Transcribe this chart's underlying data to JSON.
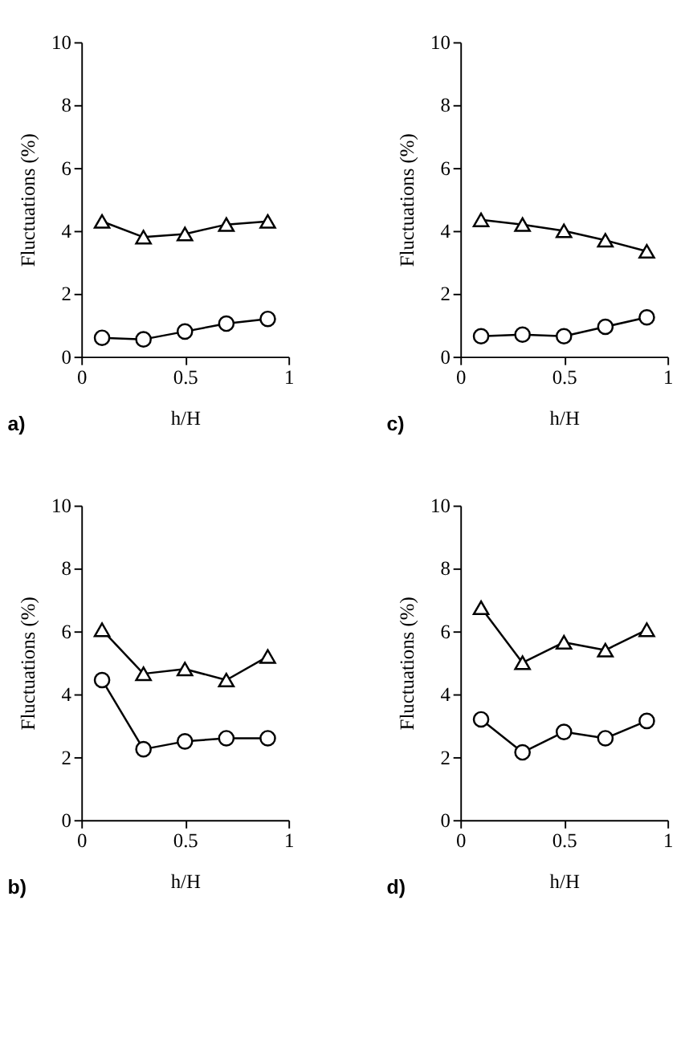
{
  "chart_data": [
    {
      "type": "line",
      "xlabel": "h/H",
      "ylabel": "Fluctuations (%)",
      "annotations": [
        "a)"
      ],
      "x": [
        0.1,
        0.3,
        0.5,
        0.7,
        0.9
      ],
      "xlim": [
        0,
        1
      ],
      "xticks": [
        0,
        0.5,
        1
      ],
      "ylim": [
        0,
        10
      ],
      "yticks": [
        0,
        2,
        4,
        6,
        8,
        10
      ],
      "grid": false,
      "legend": false,
      "series": [
        {
          "color": "#000000",
          "marker": "triangle",
          "values": [
            4.3,
            3.8,
            3.9,
            4.2,
            4.3
          ]
        },
        {
          "color": "#000000",
          "marker": "circle",
          "values": [
            0.6,
            0.55,
            0.8,
            1.05,
            1.2
          ]
        }
      ]
    },
    {
      "type": "line",
      "xlabel": "h/H",
      "ylabel": "Fluctuations (%)",
      "annotations": [
        "c)"
      ],
      "x": [
        0.1,
        0.3,
        0.5,
        0.7,
        0.9
      ],
      "xlim": [
        0,
        1
      ],
      "xticks": [
        0,
        0.5,
        1
      ],
      "ylim": [
        0,
        10
      ],
      "yticks": [
        0,
        2,
        4,
        6,
        8,
        10
      ],
      "grid": false,
      "legend": false,
      "series": [
        {
          "color": "#000000",
          "marker": "triangle",
          "values": [
            4.35,
            4.2,
            4.0,
            3.7,
            3.35
          ]
        },
        {
          "color": "#000000",
          "marker": "circle",
          "values": [
            0.65,
            0.7,
            0.65,
            0.95,
            1.25
          ]
        }
      ]
    },
    {
      "type": "line",
      "xlabel": "h/H",
      "ylabel": "Fluctuations (%)",
      "annotations": [
        "b)"
      ],
      "x": [
        0.1,
        0.3,
        0.5,
        0.7,
        0.9
      ],
      "xlim": [
        0,
        1
      ],
      "xticks": [
        0,
        0.5,
        1
      ],
      "ylim": [
        0,
        10
      ],
      "yticks": [
        0,
        2,
        4,
        6,
        8,
        10
      ],
      "grid": false,
      "legend": false,
      "series": [
        {
          "color": "#000000",
          "marker": "triangle",
          "values": [
            6.05,
            4.65,
            4.8,
            4.45,
            5.2
          ]
        },
        {
          "color": "#000000",
          "marker": "circle",
          "values": [
            4.45,
            2.25,
            2.5,
            2.6,
            2.6
          ]
        }
      ]
    },
    {
      "type": "line",
      "xlabel": "h/H",
      "ylabel": "Fluctuations (%)",
      "annotations": [
        "d)"
      ],
      "x": [
        0.1,
        0.3,
        0.5,
        0.7,
        0.9
      ],
      "xlim": [
        0,
        1
      ],
      "xticks": [
        0,
        0.5,
        1
      ],
      "ylim": [
        0,
        10
      ],
      "yticks": [
        0,
        2,
        4,
        6,
        8,
        10
      ],
      "grid": false,
      "legend": false,
      "series": [
        {
          "color": "#000000",
          "marker": "triangle",
          "values": [
            6.75,
            5.0,
            5.65,
            5.4,
            6.05
          ]
        },
        {
          "color": "#000000",
          "marker": "circle",
          "values": [
            3.2,
            2.15,
            2.8,
            2.6,
            3.15
          ]
        }
      ]
    }
  ]
}
